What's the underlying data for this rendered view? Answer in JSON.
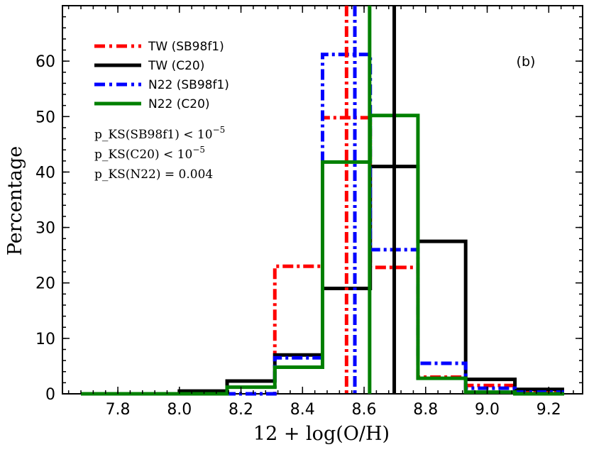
{
  "chart_data": {
    "type": "step-histogram",
    "panel_label": "(b)",
    "xlabel": "12 + log(O/H)",
    "ylabel": "Percentage",
    "xlim": [
      7.62,
      9.31
    ],
    "ylim": [
      0,
      70
    ],
    "x_ticks": [
      7.8,
      8.0,
      8.2,
      8.4,
      8.6,
      8.8,
      9.0,
      9.2
    ],
    "x_tick_labels": [
      "7.8",
      "8.0",
      "8.2",
      "8.4",
      "8.6",
      "8.8",
      "9.0",
      "9.2"
    ],
    "y_ticks": [
      0,
      10,
      20,
      30,
      40,
      50,
      60
    ],
    "y_tick_labels": [
      "0",
      "10",
      "20",
      "30",
      "40",
      "50",
      "60"
    ],
    "bin_edges": [
      7.68,
      7.84,
      8.0,
      8.155,
      8.31,
      8.465,
      8.62,
      8.775,
      8.93,
      9.09,
      9.25
    ],
    "series": [
      {
        "name": "TW (SB98f1)",
        "color": "#ff0000",
        "dash": "dashdot",
        "values": [
          0,
          0,
          0,
          0,
          23,
          49.8,
          22.8,
          3,
          1.5,
          0.5
        ],
        "median": 8.543
      },
      {
        "name": "TW (C20)",
        "color": "#000000",
        "dash": "solid",
        "values": [
          0,
          0,
          0.5,
          2.3,
          7,
          19,
          41,
          27.5,
          2.6,
          0.8
        ],
        "median": 8.698
      },
      {
        "name": "N22 (SB98f1)",
        "color": "#0000ff",
        "dash": "dashdot",
        "values": [
          0,
          0,
          0,
          0,
          6.5,
          61.2,
          26,
          5.5,
          1,
          0.3
        ],
        "median": 8.57
      },
      {
        "name": "N22 (C20)",
        "color": "#008000",
        "dash": "solid",
        "values": [
          0,
          0,
          0,
          1.2,
          4.8,
          41.8,
          50.2,
          2.8,
          0.3,
          0
        ],
        "median": 8.618
      }
    ],
    "annotations": [
      {
        "prefix": "p_KS(SB98f1) < 10",
        "exponent": "−5"
      },
      {
        "prefix": "p_KS(C20) < 10",
        "exponent": "−5"
      },
      {
        "prefix": "p_KS(N22) = 0.004",
        "exponent": ""
      }
    ],
    "legend_position": "top-left"
  }
}
